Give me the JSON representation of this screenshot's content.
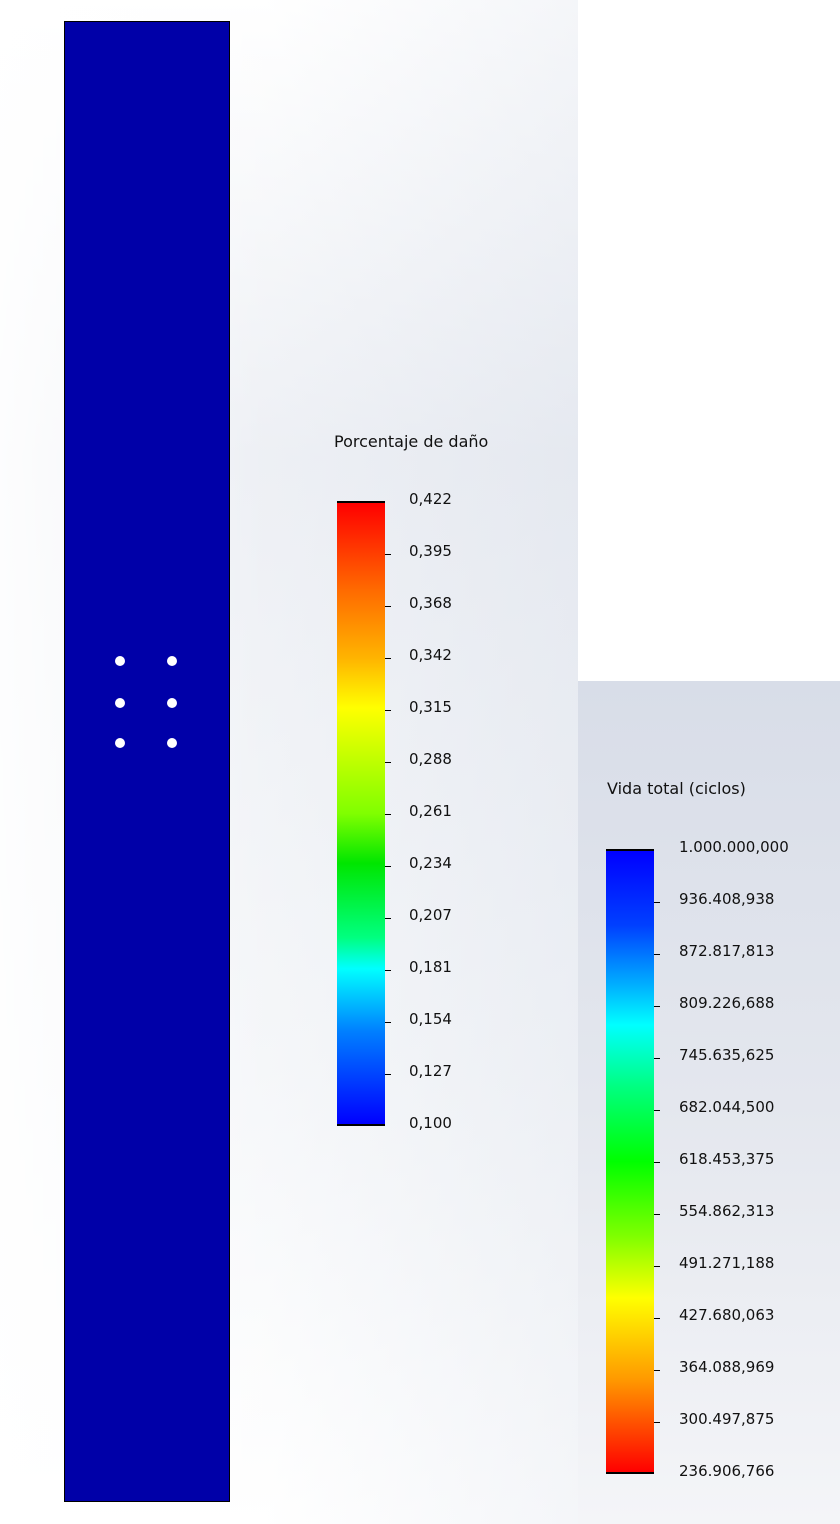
{
  "damage_legend": {
    "title": "Porcentaje de daño",
    "labels": [
      "0,422",
      "0,395",
      "0,368",
      "0,342",
      "0,315",
      "0,288",
      "0,261",
      "0,234",
      "0,207",
      "0,181",
      "0,154",
      "0,127",
      "0,100"
    ],
    "color_top": "#ff0000",
    "color_bottom": "#0000ff"
  },
  "life_legend": {
    "title": "Vida total (ciclos)",
    "labels": [
      "1.000.000,000",
      "936.408,938",
      "872.817,813",
      "809.226,688",
      "745.635,625",
      "682.044,500",
      "618.453,375",
      "554.862,313",
      "491.271,188",
      "427.680,063",
      "364.088,969",
      "300.497,875",
      "236.906,766"
    ],
    "color_top": "#0000ff",
    "color_bottom": "#ff0000"
  },
  "model": {
    "fill_color": "#0000a8",
    "hole_count": 6
  }
}
